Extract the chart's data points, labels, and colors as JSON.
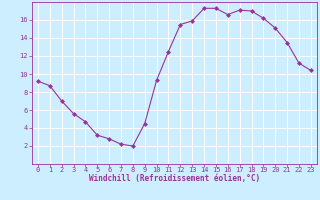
{
  "x": [
    0,
    1,
    2,
    3,
    4,
    5,
    6,
    7,
    8,
    9,
    10,
    11,
    12,
    13,
    14,
    15,
    16,
    17,
    18,
    19,
    20,
    21,
    22,
    23
  ],
  "y": [
    9.2,
    8.7,
    7.0,
    5.6,
    4.7,
    3.2,
    2.8,
    2.2,
    2.0,
    4.5,
    9.3,
    12.5,
    15.5,
    15.9,
    17.3,
    17.3,
    16.6,
    17.1,
    17.0,
    16.2,
    15.1,
    13.5,
    11.2,
    10.4
  ],
  "line_color": "#993399",
  "marker": "D",
  "marker_size": 2.0,
  "bg_color": "#cceeff",
  "grid_color": "#ffffff",
  "tick_color": "#993399",
  "label_color": "#993399",
  "xlabel": "Windchill (Refroidissement éolien,°C)",
  "xlim": [
    -0.5,
    23.5
  ],
  "ylim": [
    0,
    18
  ],
  "yticks": [
    2,
    4,
    6,
    8,
    10,
    12,
    14,
    16
  ],
  "xticks": [
    0,
    1,
    2,
    3,
    4,
    5,
    6,
    7,
    8,
    9,
    10,
    11,
    12,
    13,
    14,
    15,
    16,
    17,
    18,
    19,
    20,
    21,
    22,
    23
  ],
  "font_size_label": 5.5,
  "font_size_tick": 5.0
}
